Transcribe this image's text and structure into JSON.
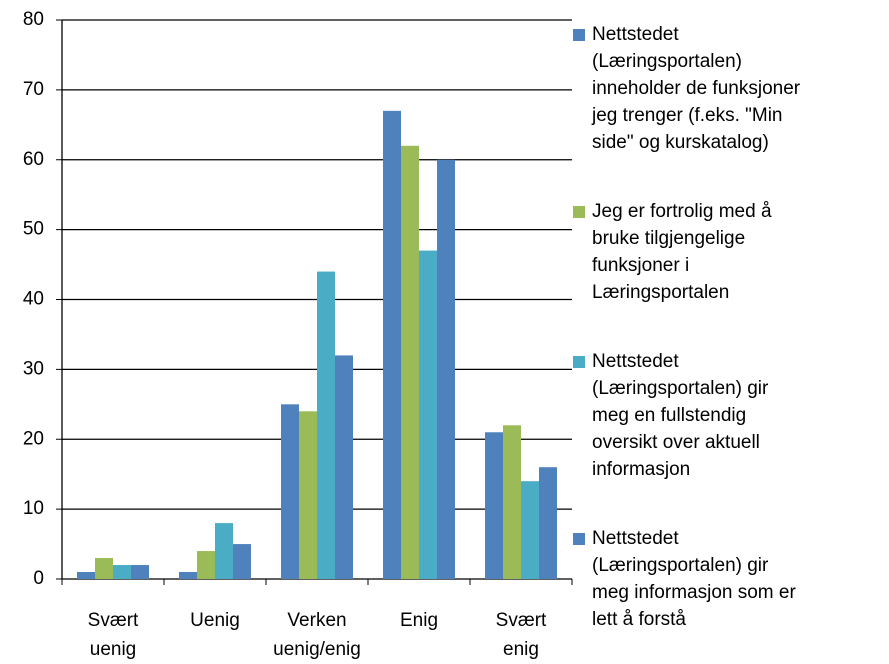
{
  "chart_data": {
    "type": "bar",
    "categories": [
      "Svært uenig",
      "Uenig",
      "Verken uenig/enig",
      "Enig",
      "Svært enig"
    ],
    "series": [
      {
        "name": "Nettstedet (Læringsportalen) inneholder de funksjoner jeg trenger (f.eks. \"Min side\" og kurskatalog)",
        "color": "#4f81bd",
        "values": [
          1,
          1,
          25,
          67,
          21
        ]
      },
      {
        "name": "Jeg er fortrolig med å bruke tilgjengelige funksjoner i Læringsportalen",
        "color": "#9bbb59",
        "values": [
          3,
          4,
          24,
          62,
          22
        ]
      },
      {
        "name": "Nettstedet (Læringsportalen) gir meg en fullstendig oversikt over aktuell informasjon",
        "color": "#4bacc6",
        "values": [
          2,
          8,
          44,
          47,
          14
        ]
      },
      {
        "name": "Nettstedet (Læringsportalen) gir meg informasjon som er lett å forstå",
        "color": "#4f81bd",
        "values": [
          2,
          5,
          32,
          60,
          16
        ]
      }
    ],
    "ylim": [
      0,
      80
    ],
    "yticks": [
      0,
      10,
      20,
      30,
      40,
      50,
      60,
      70,
      80
    ],
    "grid": true,
    "legend": "right"
  }
}
